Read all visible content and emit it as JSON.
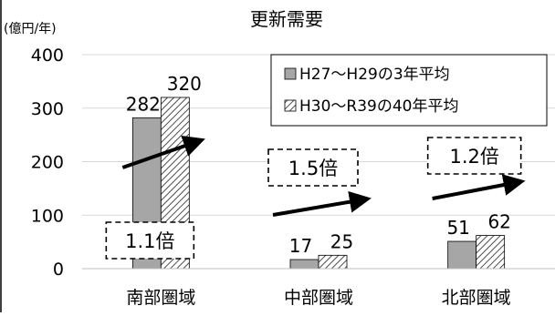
{
  "chart_data": {
    "type": "bar",
    "title": "更新需要",
    "ylabel": "(億円/年)",
    "ylim": [
      0,
      400
    ],
    "yticks": [
      0,
      100,
      200,
      300,
      400
    ],
    "grid": true,
    "legend_position": "top-right",
    "categories": [
      "南部圏域",
      "中部圏域",
      "北部圏域"
    ],
    "series": [
      {
        "name": "H27～H29の3年平均",
        "values": [
          282,
          17,
          51
        ],
        "color": "#a6a6a6",
        "pattern": "solid"
      },
      {
        "name": "H30～R39の40年平均",
        "values": [
          320,
          25,
          62
        ],
        "color": "#ffffff",
        "pattern": "hatched"
      }
    ],
    "data_labels": [
      [
        "282",
        "17",
        "51"
      ],
      [
        "320",
        "25",
        "62"
      ]
    ],
    "annotations": [
      {
        "category": "南部圏域",
        "label": "1.1倍"
      },
      {
        "category": "中部圏域",
        "label": "1.5倍"
      },
      {
        "category": "北部圏域",
        "label": "1.2倍"
      }
    ]
  }
}
